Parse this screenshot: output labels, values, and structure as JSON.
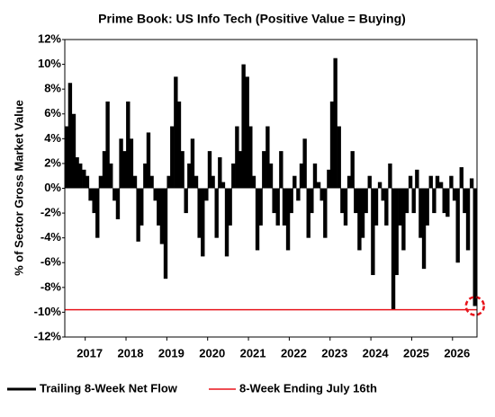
{
  "chart_data": {
    "type": "bar",
    "title": "Prime Book: US Info Tech (Positive Value = Buying)",
    "y_label": "% of Sector Gross Market Value",
    "x": [
      2016.55,
      2016.63,
      2016.72,
      2016.8,
      2016.88,
      2016.97,
      2017.05,
      2017.13,
      2017.22,
      2017.3,
      2017.38,
      2017.47,
      2017.55,
      2017.63,
      2017.72,
      2017.8,
      2017.88,
      2017.97,
      2018.05,
      2018.13,
      2018.22,
      2018.3,
      2018.38,
      2018.47,
      2018.55,
      2018.63,
      2018.72,
      2018.8,
      2018.88,
      2018.97,
      2019.05,
      2019.13,
      2019.22,
      2019.3,
      2019.38,
      2019.47,
      2019.55,
      2019.63,
      2019.72,
      2019.8,
      2019.88,
      2019.97,
      2020.05,
      2020.13,
      2020.22,
      2020.3,
      2020.38,
      2020.47,
      2020.55,
      2020.63,
      2020.72,
      2020.8,
      2020.88,
      2020.97,
      2021.05,
      2021.13,
      2021.22,
      2021.3,
      2021.38,
      2021.47,
      2021.55,
      2021.63,
      2021.72,
      2021.8,
      2021.88,
      2021.97,
      2022.05,
      2022.13,
      2022.22,
      2022.3,
      2022.38,
      2022.47,
      2022.55,
      2022.63,
      2022.72,
      2022.8,
      2022.88,
      2022.97,
      2023.05,
      2023.13,
      2023.22,
      2023.3,
      2023.38,
      2023.47,
      2023.55,
      2023.63,
      2023.72,
      2023.8,
      2023.88,
      2023.97,
      2024.05,
      2024.13,
      2024.22,
      2024.3,
      2024.38,
      2024.47,
      2024.55,
      2024.63,
      2024.72,
      2024.8,
      2024.88,
      2024.97,
      2025.05,
      2025.13,
      2025.22,
      2025.3,
      2025.38,
      2025.47,
      2025.55,
      2025.63,
      2025.72,
      2025.8,
      2025.88,
      2025.97,
      2026.05,
      2026.13,
      2026.22,
      2026.3,
      2026.38,
      2026.47,
      2026.55
    ],
    "series": [
      {
        "name": "Trailing 8-Week Net Flow",
        "color": "#000000",
        "values": [
          5,
          8.5,
          6,
          2.5,
          2,
          1.5,
          1,
          -1,
          -2,
          -4,
          1,
          3,
          7,
          2,
          -1,
          -2.5,
          4,
          3,
          7,
          4,
          1,
          -4.3,
          -3,
          2,
          4.5,
          1,
          -1,
          -3,
          -4.5,
          -7.3,
          1,
          5,
          9,
          7,
          3,
          -2,
          2,
          4,
          1,
          -4,
          -5.5,
          -1,
          3,
          1,
          -4,
          2.5,
          0.5,
          -5.5,
          -3,
          2,
          5,
          3,
          10,
          9,
          5,
          1,
          -5,
          -3,
          3,
          5,
          2,
          -2,
          -3,
          3,
          -3,
          -5,
          -2,
          1,
          -1,
          2,
          4,
          -4,
          -2,
          2,
          0.5,
          -1,
          -4,
          1.5,
          7,
          10.5,
          5,
          -2,
          -3,
          1,
          3,
          -2,
          -5,
          -4,
          -2,
          1,
          -7,
          -3,
          0.5,
          -1,
          -3,
          2,
          -9.8,
          -7,
          -3,
          -5,
          -2,
          1,
          -2,
          1.5,
          -4,
          -6.5,
          -3,
          1,
          -2,
          1,
          0.5,
          -2,
          -2.3,
          1,
          -1,
          -6,
          1.7,
          -2,
          -5,
          0.8,
          -9.5
        ]
      }
    ],
    "reference_line": {
      "name": "8-Week Ending July 16th",
      "value": -9.8,
      "color": "#e8141b"
    },
    "xlim": [
      2016.5,
      2026.6
    ],
    "xticks": [
      2017,
      2018,
      2019,
      2020,
      2021,
      2022,
      2023,
      2024,
      2025,
      2026
    ],
    "ylim": [
      -12,
      12
    ],
    "yticks": [
      {
        "value": 12,
        "label": "12%"
      },
      {
        "value": 10,
        "label": "10%"
      },
      {
        "value": 8,
        "label": "8%"
      },
      {
        "value": 6,
        "label": "6%"
      },
      {
        "value": 4,
        "label": "4%"
      },
      {
        "value": 2,
        "label": "2%"
      },
      {
        "value": 0,
        "label": "0%"
      },
      {
        "value": -2,
        "label": "-2%"
      },
      {
        "value": -4,
        "label": "-4%"
      },
      {
        "value": -6,
        "label": "-6%"
      },
      {
        "value": -8,
        "label": "-8%"
      },
      {
        "value": -10,
        "label": "-10%"
      },
      {
        "value": -12,
        "label": "-12%"
      }
    ],
    "grid": false
  }
}
